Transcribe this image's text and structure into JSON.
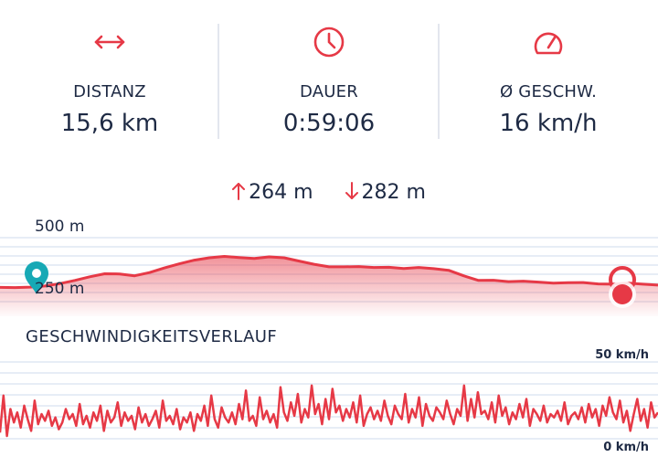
{
  "colors": {
    "accent": "#e63946",
    "text": "#1e2a44",
    "grid": "#dfe7f3",
    "start_marker": "#17a9b5"
  },
  "stats": [
    {
      "icon": "distance-arrows-icon",
      "label": "DISTANZ",
      "value": "15,6 km"
    },
    {
      "icon": "clock-icon",
      "label": "DAUER",
      "value": "0:59:06"
    },
    {
      "icon": "speedometer-icon",
      "label": "Ø GESCHW.",
      "value": "16 km/h"
    }
  ],
  "elevation": {
    "gain": "264 m",
    "loss": "282 m"
  },
  "altitude_chart": {
    "tick_top": "500 m",
    "tick_bottom": "250 m"
  },
  "speed_chart": {
    "title": "GESCHWINDIGKEITSVERLAUF",
    "tick_top": "50 km/h",
    "tick_bottom": "0 km/h"
  },
  "chart_data": [
    {
      "type": "area",
      "ylabel": "",
      "ylim": [
        125,
        560
      ],
      "ticks": [
        "500 m",
        "250 m"
      ],
      "y": [
        250,
        249,
        251,
        256,
        266,
        280,
        296,
        309,
        308,
        300,
        314,
        334,
        352,
        368,
        378,
        384,
        379,
        375,
        382,
        378,
        364,
        350,
        339,
        339,
        340,
        336,
        337,
        332,
        336,
        331,
        324,
        300,
        280,
        281,
        275,
        277,
        273,
        268,
        270,
        271,
        265,
        264,
        268,
        264,
        260
      ]
    },
    {
      "type": "line",
      "ylabel": "",
      "ylim": [
        0,
        50
      ],
      "ticks": [
        "50 km/h",
        "0 km/h"
      ],
      "y": [
        8,
        30,
        6,
        22,
        14,
        20,
        11,
        24,
        16,
        9,
        27,
        13,
        19,
        15,
        21,
        12,
        17,
        10,
        14,
        22,
        16,
        19,
        12,
        25,
        13,
        18,
        11,
        20,
        15,
        24,
        9,
        21,
        14,
        17,
        26,
        12,
        20,
        15,
        18,
        10,
        23,
        14,
        19,
        12,
        16,
        21,
        11,
        27,
        15,
        18,
        13,
        22,
        10,
        17,
        14,
        20,
        9,
        19,
        15,
        24,
        12,
        30,
        16,
        11,
        23,
        17,
        14,
        20,
        13,
        25,
        16,
        33,
        15,
        18,
        12,
        29,
        16,
        21,
        14,
        19,
        11,
        35,
        20,
        15,
        26,
        18,
        31,
        14,
        22,
        17,
        36,
        19,
        25,
        13,
        28,
        16,
        34,
        20,
        24,
        15,
        22,
        17,
        26,
        14,
        30,
        12,
        19,
        23,
        16,
        21,
        15,
        27,
        18,
        13,
        24,
        19,
        16,
        31,
        14,
        22,
        17,
        29,
        12,
        25,
        18,
        15,
        23,
        20,
        16,
        27,
        19,
        13,
        22,
        18,
        36,
        15,
        28,
        17,
        32,
        19,
        21,
        16,
        26,
        14,
        30,
        18,
        23,
        13,
        20,
        16,
        25,
        17,
        28,
        12,
        22,
        19,
        15,
        24,
        14,
        19,
        17,
        21,
        15,
        26,
        13,
        18,
        20,
        16,
        23,
        14,
        25,
        17,
        22,
        12,
        24,
        18,
        29,
        20,
        16,
        27,
        14,
        21,
        9,
        19,
        28,
        15,
        22,
        11,
        26,
        17,
        20
      ]
    }
  ]
}
